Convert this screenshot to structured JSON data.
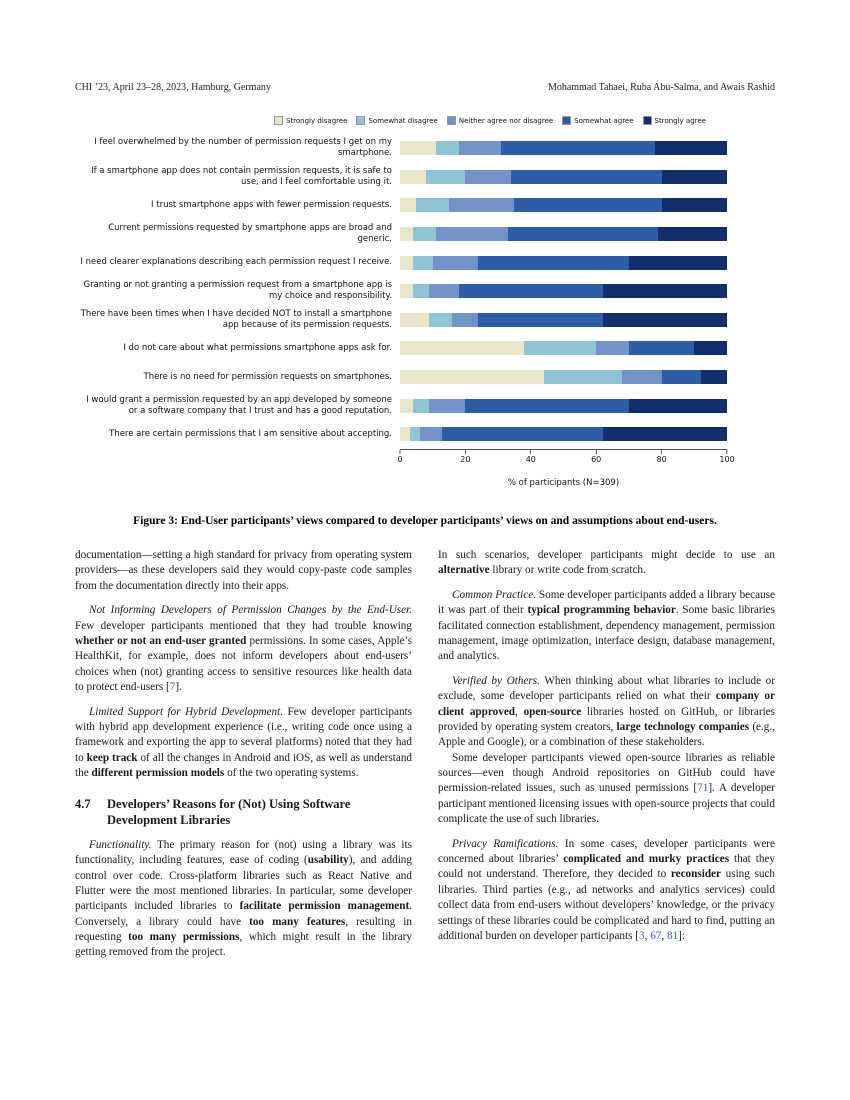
{
  "header": {
    "left": "CHI ’23, April 23–28, 2023, Hamburg, Germany",
    "right": "Mohammad Tahaei, Ruba Abu-Salma, and Awais Rashid"
  },
  "colors": {
    "citation_link": "#3a63ad",
    "axis": "#555555"
  },
  "chart_data": {
    "type": "bar",
    "orientation": "horizontal",
    "stacked": true,
    "title": "",
    "xlabel": "% of participants (N=309)",
    "ylabel": "",
    "xlim": [
      0,
      100
    ],
    "x_ticks": [
      0,
      20,
      40,
      60,
      80,
      100
    ],
    "legend_position": "top",
    "grid": false,
    "categories": [
      "I feel overwhelmed by the number of permission requests I get on my smartphone.",
      "If a smartphone app does not contain permission requests, it is safe to use, and I feel comfortable using it.",
      "I trust smartphone apps with fewer permission requests.",
      "Current permissions requested by smartphone apps are broad and generic.",
      "I need clearer explanations describing each permission request I receive.",
      "Granting or not granting a permission request from a smartphone app is my choice and responsibility.",
      "There have been times when I have decided NOT to install a smartphone app because of its permission requests.",
      "I do not care about what permissions smartphone apps ask for.",
      "There is no need for permission requests on smartphones.",
      "I would grant a permission requested by an app developed by someone or a software company that I trust and has a good reputation.",
      "There are certain permissions that I am sensitive about accepting."
    ],
    "series": [
      {
        "name": "Strongly disagree",
        "color": "#e9e5c9",
        "values": [
          11,
          8,
          5,
          4,
          4,
          4,
          9,
          38,
          44,
          4,
          3
        ]
      },
      {
        "name": "Somewhat disagree",
        "color": "#8ec4d6",
        "values": [
          7,
          12,
          10,
          7,
          6,
          5,
          7,
          22,
          24,
          5,
          3
        ]
      },
      {
        "name": "Neither agree nor disagree",
        "color": "#7392c7",
        "values": [
          13,
          14,
          20,
          22,
          14,
          9,
          8,
          10,
          12,
          11,
          7
        ]
      },
      {
        "name": "Somewhat agree",
        "color": "#2d5da7",
        "values": [
          47,
          46,
          45,
          46,
          46,
          44,
          38,
          20,
          12,
          50,
          49
        ]
      },
      {
        "name": "Strongly agree",
        "color": "#132f6b",
        "values": [
          22,
          20,
          20,
          21,
          30,
          38,
          38,
          10,
          8,
          30,
          38
        ]
      }
    ]
  },
  "figure": {
    "caption": "Figure 3: End-User participants’ views compared to developer participants’ views on and assumptions about end-users."
  },
  "columns": {
    "left": [
      {
        "type": "continuation",
        "segments": [
          {
            "style": "normal",
            "text": "documentation—setting a high standard for privacy from operating system providers—as these developers said they would copy-paste code samples from the documentation directly into their apps."
          }
        ]
      },
      {
        "type": "lead",
        "segments": [
          {
            "style": "italic",
            "text": "Not Informing Developers of Permission Changes by the End-User."
          },
          {
            "style": "normal",
            "text": " Few developer participants mentioned that they had trouble knowing "
          },
          {
            "style": "bold",
            "text": "whether or not an end-user granted"
          },
          {
            "style": "normal",
            "text": " permissions. In some cases, Apple’s HealthKit, for example, does not inform developers about end-users’ choices when (not) granting access to sensitive resources like health data to protect end-users ["
          },
          {
            "style": "link",
            "text": "7"
          },
          {
            "style": "normal",
            "text": "]."
          }
        ]
      },
      {
        "type": "lead",
        "segments": [
          {
            "style": "italic",
            "text": "Limited Support for Hybrid Development."
          },
          {
            "style": "normal",
            "text": " Few developer participants with hybrid app development experience (i.e., writing code once using a framework and exporting the app to several platforms) noted that they had to "
          },
          {
            "style": "bold",
            "text": "keep track"
          },
          {
            "style": "normal",
            "text": " of all the changes in Android and iOS, as well as understand the "
          },
          {
            "style": "bold",
            "text": "different permission models"
          },
          {
            "style": "normal",
            "text": " of the two operating systems."
          }
        ]
      },
      {
        "type": "heading",
        "number": "4.7",
        "title": "Developers’ Reasons for (Not) Using Software Development Libraries"
      },
      {
        "type": "lead",
        "segments": [
          {
            "style": "italic",
            "text": "Functionality."
          },
          {
            "style": "normal",
            "text": " The primary reason for (not) using a library was its functionality, including features, ease of coding ("
          },
          {
            "style": "bold",
            "text": "usability"
          },
          {
            "style": "normal",
            "text": "), and adding control over code. Cross-platform libraries such as React Native and Flutter were the most mentioned libraries. In particular, some developer participants included libraries to "
          },
          {
            "style": "bold",
            "text": "facilitate permission management"
          },
          {
            "style": "normal",
            "text": ". Conversely, a library could have "
          },
          {
            "style": "bold",
            "text": "too many features"
          },
          {
            "style": "normal",
            "text": ", resulting in requesting "
          },
          {
            "style": "bold",
            "text": "too many permissions"
          },
          {
            "style": "normal",
            "text": ", which might result in the library getting removed from the project."
          }
        ]
      }
    ],
    "right": [
      {
        "type": "continuation",
        "segments": [
          {
            "style": "normal",
            "text": "In such scenarios, developer participants might decide to use an "
          },
          {
            "style": "bold",
            "text": "alternative"
          },
          {
            "style": "normal",
            "text": " library or write code from scratch."
          }
        ]
      },
      {
        "type": "lead",
        "segments": [
          {
            "style": "italic",
            "text": "Common Practice."
          },
          {
            "style": "normal",
            "text": " Some developer participants added a library because it was part of their "
          },
          {
            "style": "bold",
            "text": "typical programming behavior"
          },
          {
            "style": "normal",
            "text": ". Some basic libraries facilitated connection establishment, dependency management, permission management, image optimization, interface design, database management, and analytics."
          }
        ]
      },
      {
        "type": "lead",
        "segments": [
          {
            "style": "italic",
            "text": "Verified by Others."
          },
          {
            "style": "normal",
            "text": " When thinking about what libraries to include or exclude, some developer participants relied on what their "
          },
          {
            "style": "bold",
            "text": "company or client approved"
          },
          {
            "style": "normal",
            "text": ", "
          },
          {
            "style": "bold",
            "text": "open-source"
          },
          {
            "style": "normal",
            "text": " libraries hosted on GitHub, or libraries provided by operating system creators, "
          },
          {
            "style": "bold",
            "text": "large technology companies"
          },
          {
            "style": "normal",
            "text": " (e.g., Apple and Google), or a combination of these stakeholders."
          }
        ]
      },
      {
        "type": "paragraph",
        "segments": [
          {
            "style": "normal",
            "text": "Some developer participants viewed open-source libraries as reliable sources—even though Android repositories on GitHub could have permission-related issues, such as unused permissions ["
          },
          {
            "style": "link",
            "text": "71"
          },
          {
            "style": "normal",
            "text": "]. A developer participant mentioned licensing issues with open-source projects that could complicate the use of such libraries."
          }
        ]
      },
      {
        "type": "lead",
        "segments": [
          {
            "style": "italic",
            "text": "Privacy Ramifications."
          },
          {
            "style": "normal",
            "text": " In some cases, developer participants were concerned about libraries’ "
          },
          {
            "style": "bold",
            "text": "complicated and murky practices"
          },
          {
            "style": "normal",
            "text": " that they could not understand. Therefore, they decided to "
          },
          {
            "style": "bold",
            "text": "reconsider"
          },
          {
            "style": "normal",
            "text": " using such libraries. Third parties (e.g., ad networks and analytics services) could collect data from end-users without developers’ knowledge, or the privacy settings of these libraries could be complicated and hard to find, putting an additional burden on developer participants ["
          },
          {
            "style": "link",
            "text": "3"
          },
          {
            "style": "normal",
            "text": ", "
          },
          {
            "style": "link",
            "text": "67"
          },
          {
            "style": "normal",
            "text": ", "
          },
          {
            "style": "link",
            "text": "81"
          },
          {
            "style": "normal",
            "text": "]:"
          }
        ]
      }
    ]
  }
}
